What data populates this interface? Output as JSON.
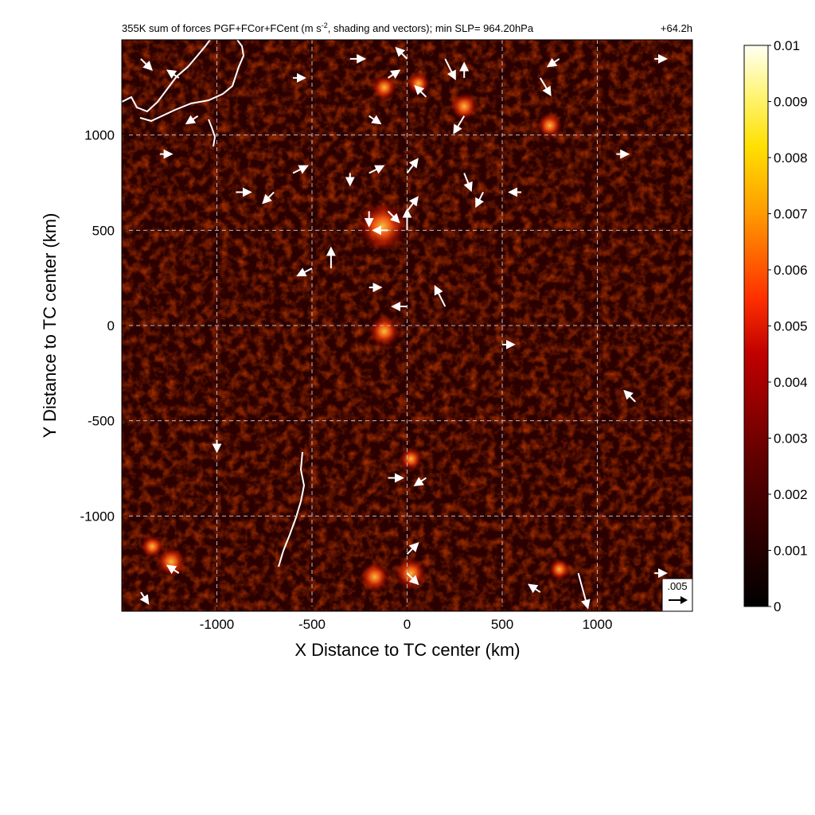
{
  "header": {
    "title_main": "355K sum of forces PGF+FCor+FCent (m s",
    "title_sup": "-2",
    "title_rest": ", shading and vectors); min SLP= 964.20hPa",
    "forecast_hour": "+64.2h"
  },
  "chart_data": {
    "type": "heatmap",
    "title": "355K sum of forces PGF+FCor+FCent (m s-2, shading and vectors); min SLP= 964.20hPa",
    "forecast_hour": "+64.2h",
    "xlabel": "X Distance to TC center (km)",
    "ylabel": "Y Distance to TC center (km)",
    "xlim": [
      -1500,
      1500
    ],
    "ylim": [
      -1500,
      1500
    ],
    "x_ticks": [
      -1000,
      -500,
      0,
      500,
      1000
    ],
    "x_tick_labels": [
      "-1000",
      "-500",
      "0",
      "500",
      "1000"
    ],
    "y_ticks": [
      -1000,
      -500,
      0,
      500,
      1000
    ],
    "y_tick_labels": [
      "-1000",
      "-500",
      "0",
      "500",
      "1000"
    ],
    "grid": true,
    "grid_style": "dashed",
    "colormap": "black-red-yellow-white",
    "colorbar": {
      "min": 0,
      "max": 0.01,
      "ticks": [
        0,
        0.001,
        0.002,
        0.003,
        0.004,
        0.005,
        0.006,
        0.007,
        0.008,
        0.009,
        0.01
      ],
      "tick_labels": [
        "0",
        "0.001",
        "0.002",
        "0.003",
        "0.004",
        "0.005",
        "0.006",
        "0.007",
        "0.008",
        "0.009",
        "0.01"
      ]
    },
    "reference_vector": {
      "label": ".005",
      "magnitude": 0.005
    },
    "hotspots": [
      {
        "x": -130,
        "y": 520,
        "value": 0.0085
      },
      {
        "x": -120,
        "y": 1250,
        "value": 0.003
      },
      {
        "x": 300,
        "y": 1150,
        "value": 0.0035
      },
      {
        "x": 60,
        "y": 1270,
        "value": 0.0025
      },
      {
        "x": 20,
        "y": -1300,
        "value": 0.0045
      },
      {
        "x": -170,
        "y": -1320,
        "value": 0.004
      },
      {
        "x": -1240,
        "y": -1240,
        "value": 0.004
      },
      {
        "x": -1340,
        "y": -1160,
        "value": 0.0025
      },
      {
        "x": -120,
        "y": -30,
        "value": 0.0045
      },
      {
        "x": 20,
        "y": -700,
        "value": 0.0025
      },
      {
        "x": 750,
        "y": 1050,
        "value": 0.003
      },
      {
        "x": 800,
        "y": -1280,
        "value": 0.0022
      }
    ],
    "vectors": [
      {
        "x": -1400,
        "y": 1400,
        "u": 0.003,
        "v": -0.003
      },
      {
        "x": -1200,
        "y": 1300,
        "u": -0.003,
        "v": 0.002
      },
      {
        "x": -600,
        "y": 1300,
        "u": 0.003,
        "v": 0.0
      },
      {
        "x": -300,
        "y": 1400,
        "u": 0.004,
        "v": 0.0
      },
      {
        "x": -100,
        "y": 1300,
        "u": 0.003,
        "v": 0.002
      },
      {
        "x": 0,
        "y": 1400,
        "u": -0.003,
        "v": 0.003
      },
      {
        "x": 200,
        "y": 1400,
        "u": 0.003,
        "v": -0.006
      },
      {
        "x": 300,
        "y": 1300,
        "u": 0.0,
        "v": 0.004
      },
      {
        "x": 700,
        "y": 1300,
        "u": 0.003,
        "v": -0.005
      },
      {
        "x": 800,
        "y": 1400,
        "u": -0.003,
        "v": -0.002
      },
      {
        "x": 1300,
        "y": 1400,
        "u": 0.003,
        "v": 0.0
      },
      {
        "x": -1100,
        "y": 1100,
        "u": -0.003,
        "v": -0.002
      },
      {
        "x": -200,
        "y": 1100,
        "u": 0.003,
        "v": -0.002
      },
      {
        "x": 100,
        "y": 1200,
        "u": -0.003,
        "v": 0.003
      },
      {
        "x": 300,
        "y": 1100,
        "u": -0.003,
        "v": -0.005
      },
      {
        "x": -1300,
        "y": 900,
        "u": 0.003,
        "v": 0.0
      },
      {
        "x": -600,
        "y": 800,
        "u": 0.004,
        "v": 0.002
      },
      {
        "x": -300,
        "y": 800,
        "u": 0.0,
        "v": -0.003
      },
      {
        "x": -200,
        "y": 800,
        "u": 0.004,
        "v": 0.002
      },
      {
        "x": 0,
        "y": 800,
        "u": 0.003,
        "v": 0.004
      },
      {
        "x": 300,
        "y": 800,
        "u": 0.002,
        "v": -0.005
      },
      {
        "x": 400,
        "y": 700,
        "u": -0.002,
        "v": -0.004
      },
      {
        "x": -900,
        "y": 700,
        "u": 0.004,
        "v": 0.0
      },
      {
        "x": -700,
        "y": 700,
        "u": -0.003,
        "v": -0.003
      },
      {
        "x": -200,
        "y": 600,
        "u": 0.0,
        "v": -0.004
      },
      {
        "x": -100,
        "y": 600,
        "u": 0.003,
        "v": -0.003
      },
      {
        "x": 0,
        "y": 600,
        "u": 0.003,
        "v": 0.004
      },
      {
        "x": 0,
        "y": 500,
        "u": 0.0,
        "v": 0.006
      },
      {
        "x": -100,
        "y": 500,
        "u": -0.004,
        "v": 0.0
      },
      {
        "x": -500,
        "y": 300,
        "u": -0.004,
        "v": -0.002
      },
      {
        "x": -400,
        "y": 300,
        "u": 0.0,
        "v": 0.006
      },
      {
        "x": 200,
        "y": 100,
        "u": -0.003,
        "v": 0.006
      },
      {
        "x": 0,
        "y": 100,
        "u": -0.004,
        "v": 0.0
      },
      {
        "x": -200,
        "y": 200,
        "u": 0.003,
        "v": 0.0
      },
      {
        "x": 500,
        "y": -100,
        "u": 0.003,
        "v": 0.0
      },
      {
        "x": -100,
        "y": -800,
        "u": 0.004,
        "v": 0.0
      },
      {
        "x": 100,
        "y": -800,
        "u": -0.003,
        "v": -0.002
      },
      {
        "x": 0,
        "y": -1200,
        "u": 0.003,
        "v": 0.003
      },
      {
        "x": 0,
        "y": -1300,
        "u": 0.003,
        "v": -0.003
      },
      {
        "x": 900,
        "y": -1300,
        "u": 0.003,
        "v": -0.011
      },
      {
        "x": 700,
        "y": -1400,
        "u": -0.003,
        "v": 0.002
      },
      {
        "x": -1400,
        "y": -1400,
        "u": 0.002,
        "v": -0.003
      },
      {
        "x": -1200,
        "y": -1300,
        "u": -0.003,
        "v": 0.002
      },
      {
        "x": 1200,
        "y": -400,
        "u": -0.003,
        "v": 0.003
      },
      {
        "x": 1300,
        "y": -1300,
        "u": 0.003,
        "v": 0.0
      },
      {
        "x": -1000,
        "y": -600,
        "u": 0.0,
        "v": -0.003
      },
      {
        "x": 600,
        "y": 700,
        "u": -0.003,
        "v": 0.0
      },
      {
        "x": 1100,
        "y": 900,
        "u": 0.003,
        "v": 0.0
      }
    ],
    "coastline_color": "#ffffff",
    "vector_color": "#ffffff"
  }
}
